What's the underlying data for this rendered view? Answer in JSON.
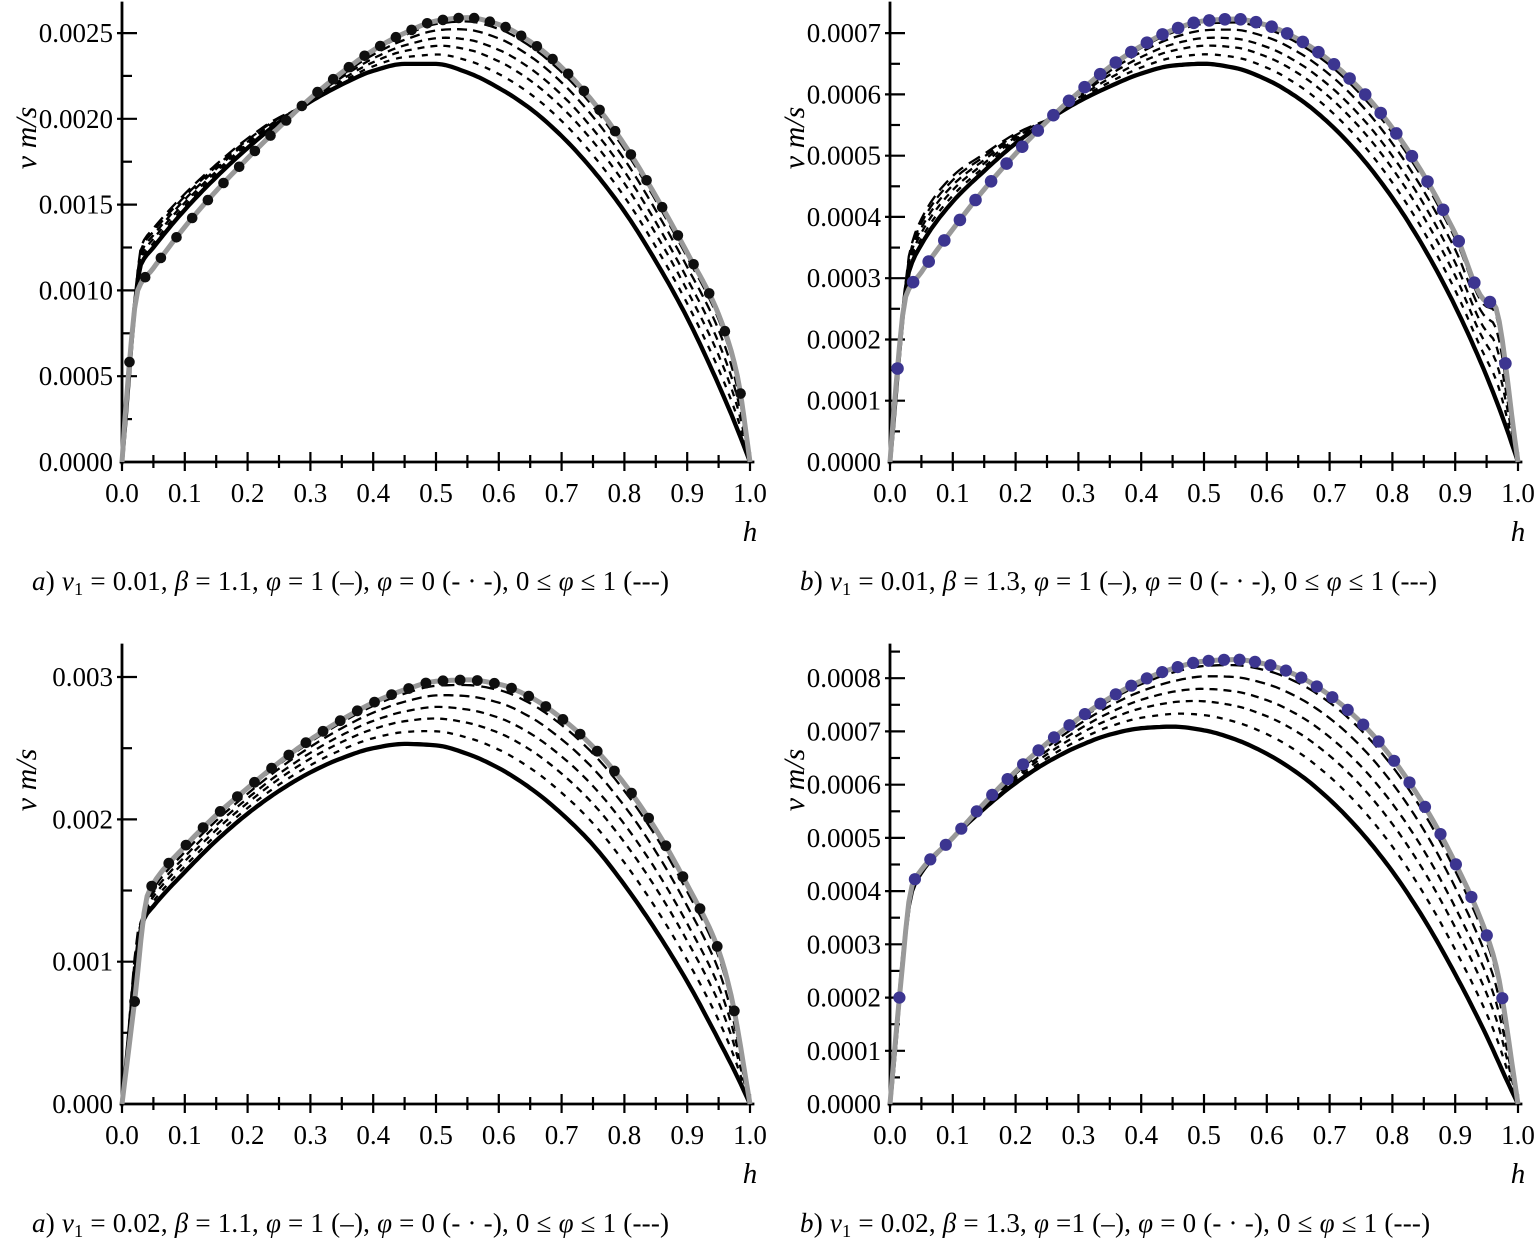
{
  "figure": {
    "background": "#ffffff"
  },
  "colors": {
    "axis": "#000000",
    "solid_curve": "#000000",
    "dashed_curve": "#000000",
    "gray_curve": "#999999",
    "marker_black": "#0f0f0f",
    "marker_blue": "#3c3590"
  },
  "chart_data": [
    {
      "id": "top-left",
      "type": "line",
      "ylabel": "v m/s",
      "xlabel": "h",
      "xlim": [
        0,
        1
      ],
      "ylim": [
        0,
        0.002646
      ],
      "x_tick_labels": [
        "0.0",
        "0.1",
        "0.2",
        "0.3",
        "0.4",
        "0.5",
        "0.6",
        "0.7",
        "0.8",
        "0.9",
        "1.0"
      ],
      "x_minor_step": 0.05,
      "y_ticks": {
        "values": [
          0,
          0.0005,
          0.001,
          0.0015,
          0.002,
          0.0025
        ],
        "labels": [
          "0.0000",
          "0.0005",
          "0.0010",
          "0.0015",
          "0.0020",
          "0.0025"
        ],
        "minor_step": 0.00025
      },
      "series": [
        {
          "name": "φ = 1",
          "style": "solid",
          "h": [
            0,
            0.03,
            0.05,
            0.1,
            0.15,
            0.2,
            0.25,
            0.3,
            0.35,
            0.4,
            0.45,
            0.5,
            0.55,
            0.6,
            0.65,
            0.7,
            0.75,
            0.8,
            0.85,
            0.9,
            0.95,
            0.98,
            1.0
          ],
          "v": [
            0,
            0.00115,
            0.00125,
            0.00147,
            0.00166,
            0.00183,
            0.00198,
            0.0021,
            0.0022,
            0.00228,
            0.00232,
            0.00232,
            0.00227,
            0.00218,
            0.00206,
            0.0019,
            0.0017,
            0.00146,
            0.00117,
            0.00084,
            0.00045,
            0.00019,
            0
          ]
        },
        {
          "name": "φ = 0",
          "style": "dots-on-gray",
          "h": [
            0,
            0.01,
            0.025,
            0.05,
            0.1,
            0.15,
            0.2,
            0.25,
            0.3,
            0.35,
            0.4,
            0.45,
            0.5,
            0.55,
            0.6,
            0.65,
            0.7,
            0.75,
            0.8,
            0.85,
            0.9,
            0.95,
            0.98,
            1.0
          ],
          "v": [
            0,
            0.0005,
            0.001,
            0.00113,
            0.00137,
            0.00158,
            0.00177,
            0.00195,
            0.00212,
            0.00227,
            0.0024,
            0.0025,
            0.00257,
            0.00259,
            0.00255,
            0.00245,
            0.0023,
            0.0021,
            0.00185,
            0.00155,
            0.00122,
            0.00086,
            0.0005,
            0
          ],
          "marker_color": "#0f0f0f",
          "marker_radius": 5.3,
          "marker_count": 40,
          "marker_h_min": 0.012,
          "marker_h_max": 0.985
        },
        {
          "name": "0 ≤ φ ≤ 1",
          "style": "dashed-family",
          "fractions": [
            0.22,
            0.42,
            0.6,
            0.78,
            0.93
          ],
          "dash_patterns": [
            "6 7",
            "7 6",
            "8 6",
            "10 6",
            "13 7"
          ]
        }
      ],
      "caption_html": "<i>a</i>) <i>v</i><sub>1</sub> = 0.01, <i>β</i> = 1.1, <i>φ</i> = 1 (–), <i>φ</i> = 0 (- · -), 0 ≤ <i>φ</i> ≤ 1 (---)"
    },
    {
      "id": "top-right",
      "type": "line",
      "ylabel": "v m/s",
      "xlabel": "h",
      "xlim": [
        0,
        1
      ],
      "ylim": [
        0,
        0.000741
      ],
      "x_tick_labels": [
        "0.0",
        "0.1",
        "0.2",
        "0.3",
        "0.4",
        "0.5",
        "0.6",
        "0.7",
        "0.8",
        "0.9",
        "1.0"
      ],
      "x_minor_step": 0.05,
      "y_ticks": {
        "values": [
          0,
          0.0001,
          0.0002,
          0.0003,
          0.0004,
          0.0005,
          0.0006,
          0.0007
        ],
        "labels": [
          "0.0000",
          "0.0001",
          "0.0002",
          "0.0003",
          "0.0004",
          "0.0005",
          "0.0006",
          "0.0007"
        ],
        "minor_step": 5e-05
      },
      "series": [
        {
          "name": "φ = 1",
          "style": "solid",
          "h": [
            0,
            0.03,
            0.05,
            0.1,
            0.15,
            0.2,
            0.25,
            0.3,
            0.35,
            0.4,
            0.45,
            0.5,
            0.55,
            0.6,
            0.65,
            0.7,
            0.75,
            0.8,
            0.85,
            0.9,
            0.95,
            0.98,
            1.0
          ],
          "v": [
            0,
            0.00031,
            0.000355,
            0.000425,
            0.000475,
            0.00052,
            0.000557,
            0.000588,
            0.000613,
            0.000634,
            0.000647,
            0.00065,
            0.000643,
            0.000624,
            0.000594,
            0.000552,
            0.000498,
            0.000431,
            0.00035,
            0.000254,
            0.00014,
            6e-05,
            0
          ]
        },
        {
          "name": "φ = 0",
          "style": "dots-on-gray",
          "h": [
            0,
            0.01,
            0.025,
            0.05,
            0.1,
            0.15,
            0.2,
            0.25,
            0.3,
            0.35,
            0.4,
            0.45,
            0.5,
            0.55,
            0.6,
            0.65,
            0.7,
            0.75,
            0.8,
            0.85,
            0.9,
            0.95,
            0.96,
            1.0
          ],
          "v": [
            0,
            0.00013,
            0.00027,
            0.00031,
            0.00038,
            0.000445,
            0.000503,
            0.000556,
            0.000603,
            0.000645,
            0.000679,
            0.000705,
            0.00072,
            0.000723,
            0.000713,
            0.00069,
            0.000655,
            0.000607,
            0.000545,
            0.000468,
            0.000373,
            0.000262,
            0.00026,
            0
          ],
          "marker_color": "#3c3590",
          "marker_radius": 6.3,
          "marker_count": 40,
          "marker_h_min": 0.012,
          "marker_h_max": 0.98
        },
        {
          "name": "0 ≤ φ ≤ 1",
          "style": "dashed-family",
          "fractions": [
            0.22,
            0.42,
            0.6,
            0.78,
            0.93
          ],
          "dash_patterns": [
            "6 7",
            "7 6",
            "8 6",
            "10 6",
            "13 7"
          ]
        }
      ],
      "caption_html": "<i>b</i>) <i>v</i><sub>1</sub> = 0.01, <i>β</i> = 1.3, <i>φ</i> = 1 (–), <i>φ</i> = 0 (- · -), 0 ≤ <i>φ</i> ≤ 1 (---)"
    },
    {
      "id": "bottom-left",
      "type": "line",
      "ylabel": "v m/s",
      "xlabel": "h",
      "xlim": [
        0,
        1
      ],
      "ylim": [
        0,
        0.00319
      ],
      "x_tick_labels": [
        "0.0",
        "0.1",
        "0.2",
        "0.3",
        "0.4",
        "0.5",
        "0.6",
        "0.7",
        "0.8",
        "0.9",
        "1.0"
      ],
      "x_minor_step": 0.05,
      "y_ticks": {
        "values": [
          0,
          0.001,
          0.002,
          0.003
        ],
        "labels": [
          "0.000",
          "0.001",
          "0.002",
          "0.003"
        ],
        "minor_step": 0.0005
      },
      "series": [
        {
          "name": "φ = 1",
          "style": "solid",
          "h": [
            0,
            0.035,
            0.05,
            0.1,
            0.15,
            0.2,
            0.25,
            0.3,
            0.35,
            0.4,
            0.45,
            0.5,
            0.55,
            0.6,
            0.65,
            0.7,
            0.75,
            0.8,
            0.85,
            0.9,
            0.95,
            0.98,
            1.0
          ],
          "v": [
            0,
            0.0013,
            0.00139,
            0.00163,
            0.00185,
            0.00204,
            0.0022,
            0.00233,
            0.00243,
            0.0025,
            0.00253,
            0.00252,
            0.00246,
            0.00236,
            0.00222,
            0.00204,
            0.00182,
            0.00154,
            0.00122,
            0.00086,
            0.00045,
            0.00019,
            0
          ]
        },
        {
          "name": "φ = 0",
          "style": "dots-on-gray",
          "h": [
            0,
            0.02,
            0.04,
            0.05,
            0.1,
            0.15,
            0.2,
            0.25,
            0.3,
            0.35,
            0.4,
            0.45,
            0.5,
            0.55,
            0.6,
            0.65,
            0.7,
            0.75,
            0.8,
            0.85,
            0.9,
            0.95,
            0.97,
            1.0
          ],
          "v": [
            0,
            0.00072,
            0.00146,
            0.00155,
            0.00181,
            0.00203,
            0.00222,
            0.0024,
            0.00256,
            0.0027,
            0.00282,
            0.00291,
            0.00297,
            0.00298,
            0.00295,
            0.00286,
            0.00271,
            0.00251,
            0.00225,
            0.00193,
            0.00154,
            0.00108,
            0.00076,
            0
          ],
          "marker_color": "#0f0f0f",
          "marker_radius": 5.4,
          "marker_count": 36,
          "marker_h_min": 0.02,
          "marker_h_max": 0.975
        },
        {
          "name": "0 ≤ φ ≤ 1",
          "style": "dashed-family",
          "fractions": [
            0.22,
            0.42,
            0.6,
            0.78,
            0.93
          ],
          "dash_patterns": [
            "6 7",
            "7 6",
            "8 6",
            "10 6",
            "13 7"
          ]
        }
      ],
      "caption_html": "<i>a</i>) <i>v</i><sub>1</sub> = 0.02, <i>β</i> = 1.1, <i>φ</i> = 1 (–), <i>φ</i> = 0 (- · -), 0 ≤ <i>φ</i> ≤ 1 (---)"
    },
    {
      "id": "bottom-right",
      "type": "line",
      "ylabel": "v m/s",
      "xlabel": "h",
      "xlim": [
        0,
        1
      ],
      "ylim": [
        0,
        0.000853
      ],
      "x_tick_labels": [
        "0.0",
        "0.1",
        "0.2",
        "0.3",
        "0.4",
        "0.5",
        "0.6",
        "0.7",
        "0.8",
        "0.9",
        "1.0"
      ],
      "x_minor_step": 0.05,
      "y_ticks": {
        "values": [
          0,
          0.0001,
          0.0002,
          0.0003,
          0.0004,
          0.0005,
          0.0006,
          0.0007,
          0.0008
        ],
        "labels": [
          "0.0000",
          "0.0001",
          "0.0002",
          "0.0003",
          "0.0004",
          "0.0005",
          "0.0006",
          "0.0007",
          "0.0008"
        ],
        "minor_step": 5e-05
      },
      "series": [
        {
          "name": "φ = 1",
          "style": "solid",
          "h": [
            0,
            0.035,
            0.05,
            0.1,
            0.15,
            0.2,
            0.25,
            0.3,
            0.35,
            0.4,
            0.45,
            0.5,
            0.55,
            0.6,
            0.65,
            0.7,
            0.75,
            0.8,
            0.85,
            0.9,
            0.95,
            0.98,
            1.0
          ],
          "v": [
            0,
            0.0004,
            0.000435,
            0.0005,
            0.000555,
            0.000603,
            0.000642,
            0.000672,
            0.000694,
            0.000706,
            0.000709,
            0.000702,
            0.000685,
            0.000658,
            0.000621,
            0.000572,
            0.000511,
            0.000437,
            0.000348,
            0.000244,
            0.000128,
            5e-05,
            0
          ]
        },
        {
          "name": "φ = 0",
          "style": "dots-on-gray",
          "h": [
            0,
            0.015,
            0.035,
            0.05,
            0.1,
            0.15,
            0.2,
            0.25,
            0.3,
            0.35,
            0.4,
            0.45,
            0.5,
            0.55,
            0.6,
            0.65,
            0.7,
            0.75,
            0.8,
            0.85,
            0.9,
            0.95,
            0.965,
            1.0
          ],
          "v": [
            0,
            0.0002,
            0.00041,
            0.00044,
            0.0005,
            0.000565,
            0.000625,
            0.000678,
            0.000724,
            0.000763,
            0.000795,
            0.000818,
            0.000832,
            0.000835,
            0.000826,
            0.000804,
            0.000768,
            0.000717,
            0.000649,
            0.000562,
            0.000453,
            0.000318,
            0.00026,
            0
          ],
          "marker_color": "#3c3590",
          "marker_radius": 6.1,
          "marker_count": 40,
          "marker_h_min": 0.015,
          "marker_h_max": 0.975
        },
        {
          "name": "0 ≤ φ ≤ 1",
          "style": "dashed-family",
          "fractions": [
            0.22,
            0.42,
            0.6,
            0.78,
            0.93
          ],
          "dash_patterns": [
            "6 7",
            "7 6",
            "8 6",
            "10 6",
            "13 7"
          ]
        }
      ],
      "caption_html": "<i>b</i>) <i>v</i><sub>1</sub> = 0.02, <i>β</i> = 1.3, <i>φ</i> =1 (–), <i>φ</i> = 0 (- · -), 0 ≤ <i>φ</i> ≤ 1 (---)"
    }
  ]
}
